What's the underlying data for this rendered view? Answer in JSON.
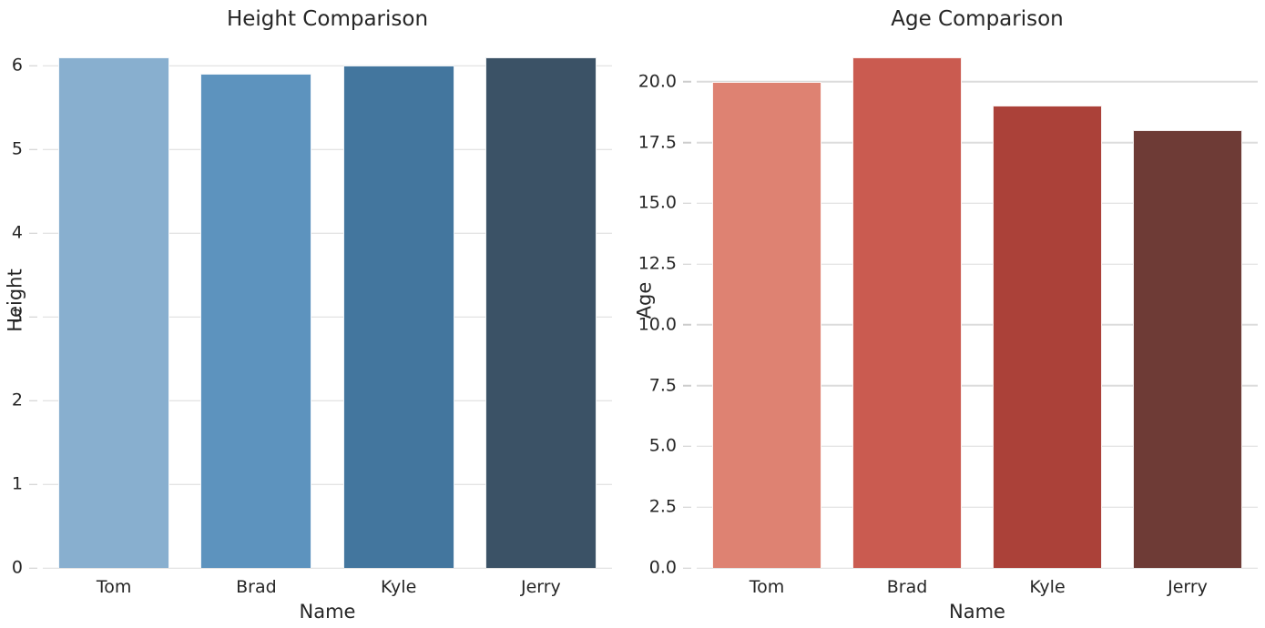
{
  "palette": {
    "background": "#ffffff",
    "text": "#262626",
    "gridline": "#dcdcdc",
    "tick_mark": "#cccccc"
  },
  "chart_data": [
    {
      "type": "bar",
      "title": "Height Comparison",
      "xlabel": "Name",
      "ylabel": "Height",
      "categories": [
        "Tom",
        "Brad",
        "Kyle",
        "Jerry"
      ],
      "values": [
        6.1,
        5.9,
        6.0,
        6.1
      ],
      "bar_colors": [
        "#88afcf",
        "#5d93be",
        "#43769e",
        "#3b5266"
      ],
      "ylim": [
        0,
        6.405
      ],
      "yticks": [
        0,
        1,
        2,
        3,
        4,
        5,
        6
      ],
      "ytick_labels": [
        "0",
        "1",
        "2",
        "3",
        "4",
        "5",
        "6"
      ],
      "grid": true,
      "legend": "none"
    },
    {
      "type": "bar",
      "title": "Age Comparison",
      "xlabel": "Name",
      "ylabel": "Age",
      "categories": [
        "Tom",
        "Brad",
        "Kyle",
        "Jerry"
      ],
      "values": [
        20,
        21,
        19,
        18
      ],
      "bar_colors": [
        "#de8272",
        "#ca5b50",
        "#ab4139",
        "#6e3b36"
      ],
      "ylim": [
        0,
        22.05
      ],
      "yticks": [
        0,
        2.5,
        5,
        7.5,
        10,
        12.5,
        15,
        17.5,
        20
      ],
      "ytick_labels": [
        "0.0",
        "2.5",
        "5.0",
        "7.5",
        "10.0",
        "12.5",
        "15.0",
        "17.5",
        "20.0"
      ],
      "grid": true,
      "legend": "none"
    }
  ]
}
